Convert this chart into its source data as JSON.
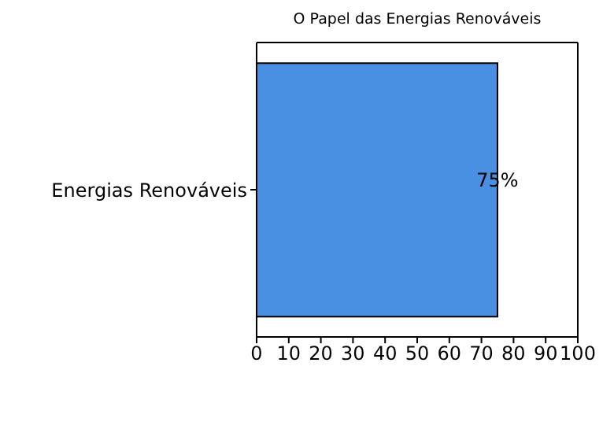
{
  "chart_data": {
    "type": "bar",
    "orientation": "horizontal",
    "title": "O Papel das Energias Renováveis",
    "categories": [
      "Energias Renováveis"
    ],
    "values": [
      75
    ],
    "color": "#4a90e2",
    "value_labels": [
      "75%"
    ],
    "xlim": [
      0,
      100
    ],
    "xticks": [
      0,
      10,
      20,
      30,
      40,
      50,
      60,
      70,
      80,
      90,
      100
    ],
    "grid": false
  }
}
